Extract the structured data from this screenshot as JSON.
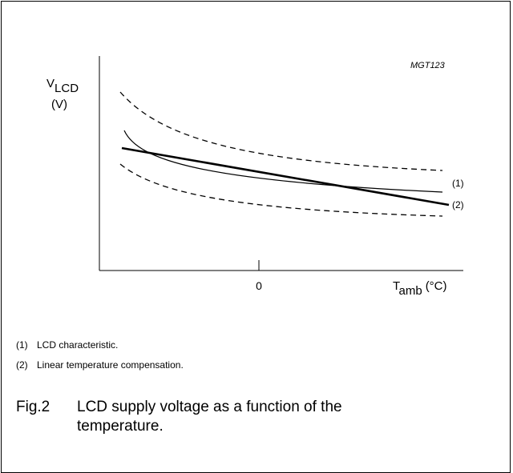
{
  "figure_id": "MGT123",
  "y_axis": {
    "symbol": "V",
    "subscript": "LCD",
    "unit": "(V)"
  },
  "x_axis": {
    "tick": "0",
    "symbol": "T",
    "subscript": "amb",
    "unit": "(°C)"
  },
  "curve_labels": [
    "(1)",
    "(2)"
  ],
  "notes": [
    {
      "number": "(1)",
      "text": "LCD characteristic."
    },
    {
      "number": "(2)",
      "text": "Linear temperature compensation."
    }
  ],
  "caption": {
    "number": "Fig.2",
    "text": "LCD supply voltage as a function of the temperature."
  }
}
